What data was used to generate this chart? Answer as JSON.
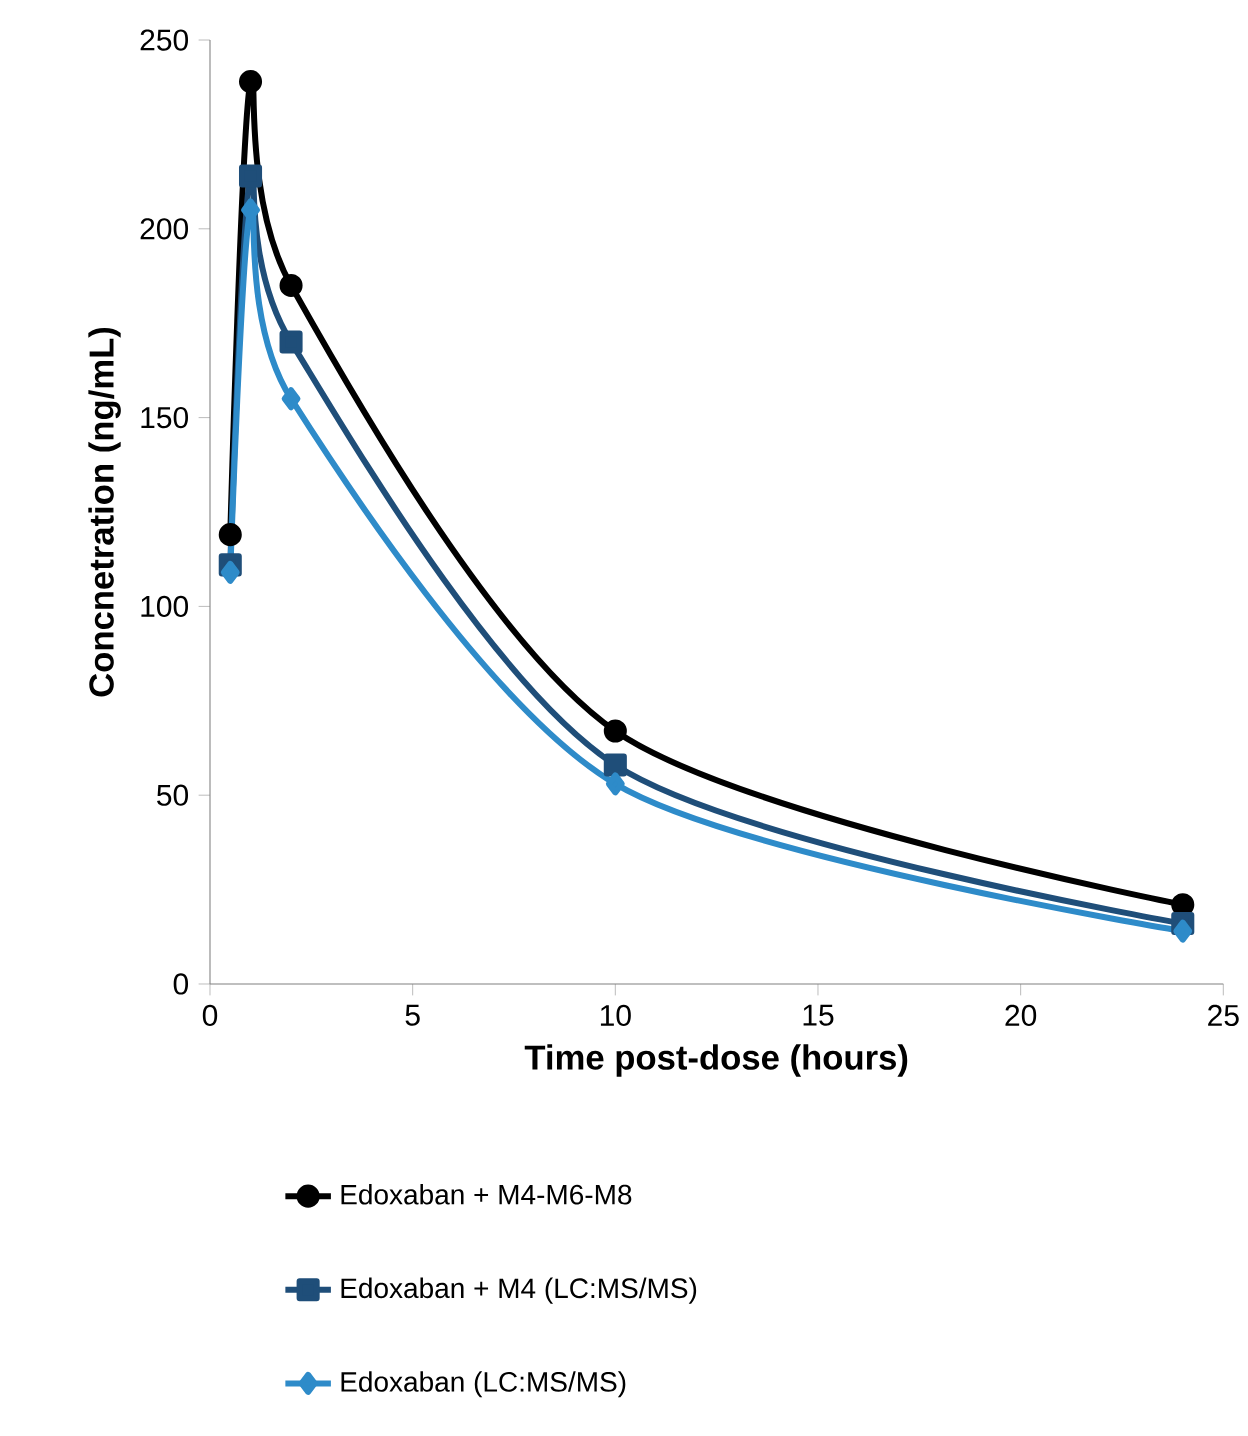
{
  "chart_data": {
    "type": "line",
    "xlabel": "Time post-dose (hours)",
    "ylabel": "Concnetration (ng/mL)",
    "x": [
      0.5,
      1,
      2,
      10,
      24
    ],
    "xlim": [
      0,
      25
    ],
    "xticks": [
      0,
      5,
      10,
      15,
      20,
      25
    ],
    "ylim": [
      0,
      250
    ],
    "yticks": [
      0,
      50,
      100,
      150,
      200,
      250
    ],
    "grid": false,
    "legend": "bottom",
    "series": [
      {
        "name": "Edoxaban + M4-M6-M8",
        "color": "#000000",
        "marker": "circle",
        "values": [
          119,
          239,
          185,
          67,
          21
        ]
      },
      {
        "name": "Edoxaban + M4 (LC:MS/MS)",
        "color": "#1f4e79",
        "marker": "square",
        "values": [
          111,
          214,
          170,
          58,
          16
        ]
      },
      {
        "name": "Edoxaban (LC:MS/MS)",
        "color": "#2e8bc9",
        "marker": "diamond",
        "values": [
          109,
          205,
          155,
          53,
          14
        ]
      }
    ]
  }
}
